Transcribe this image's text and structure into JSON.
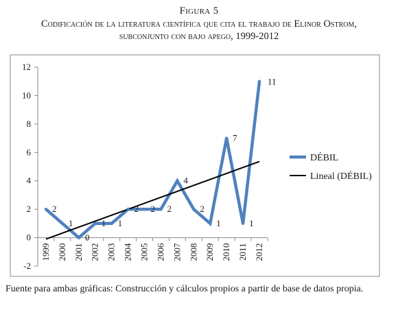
{
  "figure_label": "Figura 5",
  "title_lines": [
    "Codificación de la literatura científica que cita el trabajo de Elinor Ostrom,",
    "subconjunto con bajo apego, 1999-2012"
  ],
  "source_note": "Fuente para ambas gráficas: Construcción y cálculos propios a partir de base de datos propia.",
  "colors": {
    "series": "#4f81bd",
    "trend": "#000000",
    "axis": "#888888",
    "frame": "#888888"
  },
  "chart_data": {
    "type": "line",
    "x": [
      "1999",
      "2000",
      "2001",
      "2002",
      "2003",
      "2004",
      "2005",
      "2006",
      "2007",
      "2008",
      "2009",
      "2010",
      "2011",
      "2012"
    ],
    "series": [
      {
        "name": "DÉBIL",
        "values": [
          2,
          1,
          0,
          1,
          1,
          2,
          2,
          2,
          4,
          2,
          1,
          7,
          1,
          11
        ]
      },
      {
        "name": "Lineal (DÉBIL)",
        "type": "trendline",
        "values": [
          -0.1,
          0.32,
          0.74,
          1.16,
          1.58,
          2.0,
          2.42,
          2.84,
          3.26,
          3.68,
          4.1,
          4.52,
          4.94,
          5.36
        ]
      }
    ],
    "data_labels": [
      "2",
      "1",
      "0",
      "1",
      "1",
      "2",
      "2",
      "2",
      "4",
      "2",
      "1",
      "7",
      "1",
      "11"
    ],
    "yticks": [
      "-2",
      "0",
      "2",
      "4",
      "6",
      "8",
      "10",
      "12"
    ],
    "ylim": [
      -2,
      12
    ],
    "grid": false,
    "legend_position": "right"
  }
}
